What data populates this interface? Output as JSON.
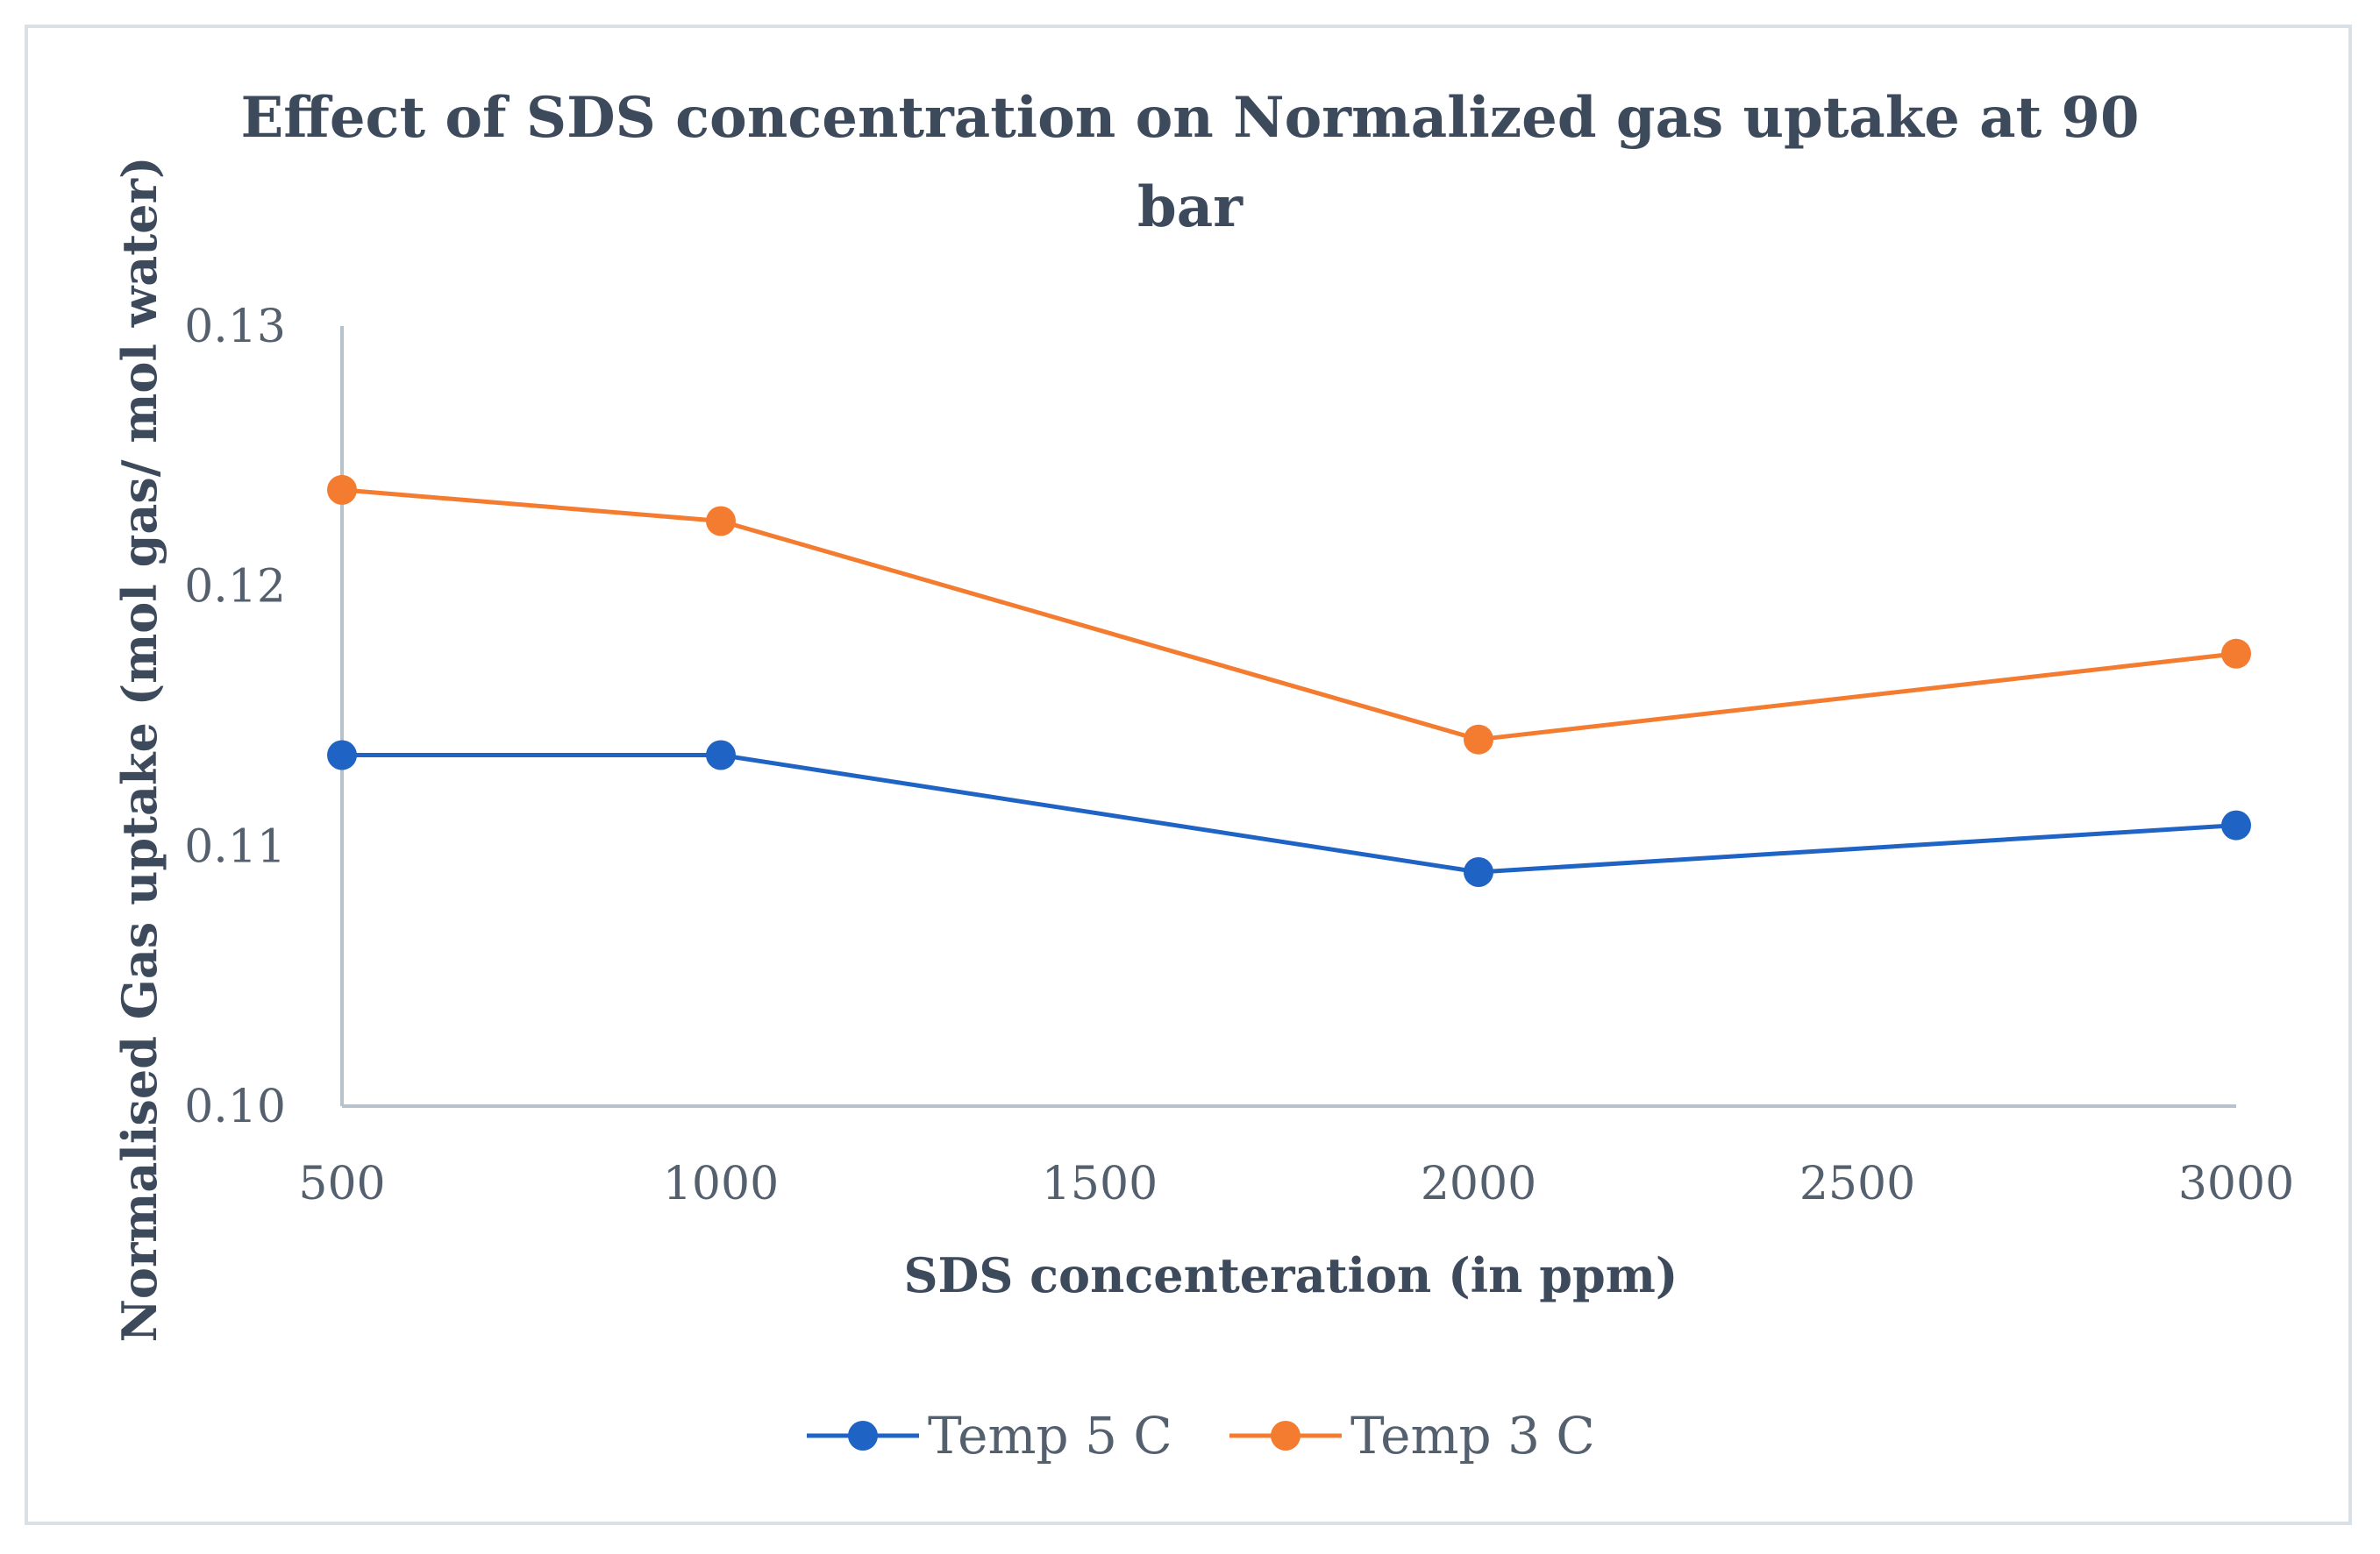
{
  "chart_data": {
    "type": "line",
    "title_lines": [
      "Effect of SDS concentration on Normalized gas uptake at 90",
      "bar"
    ],
    "xlabel": "SDS concenteration (in ppm)",
    "ylabel": "Normalised Gas uptake (mol gas/ mol water)",
    "x_ticks": [
      "500",
      "1000",
      "1500",
      "2000",
      "2500",
      "3000"
    ],
    "y_ticks": [
      "0.10",
      "0.11",
      "0.12",
      "0.13"
    ],
    "xlim": [
      500,
      3000
    ],
    "ylim": [
      0.1,
      0.13
    ],
    "legend_position": "bottom",
    "series": [
      {
        "name": "Temp 5 C",
        "color": "#1f63c4",
        "x": [
          500,
          1000,
          2000,
          3000
        ],
        "values": [
          0.1135,
          0.1135,
          0.109,
          0.1108
        ]
      },
      {
        "name": "Temp 3 C",
        "color": "#f47c30",
        "x": [
          500,
          1000,
          2000,
          3000
        ],
        "values": [
          0.1237,
          0.1225,
          0.1141,
          0.1174
        ]
      }
    ]
  }
}
